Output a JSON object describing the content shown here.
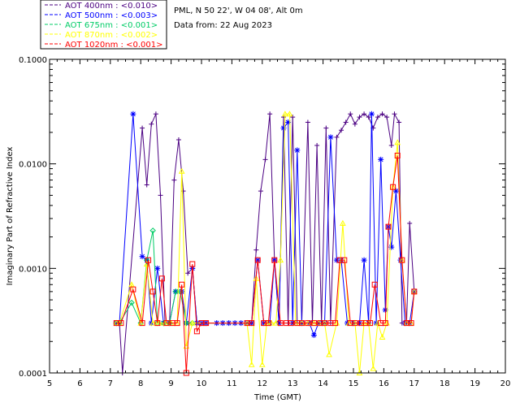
{
  "header": {
    "site_line": "PML, N 50 22', W 04 08', Alt 0m",
    "date_line": "Data from: 22 Aug 2023"
  },
  "chart_data": {
    "type": "line",
    "title": "",
    "xlabel": "Time (GMT)",
    "ylabel": "Imaginary Part of Refractive Index",
    "xlim": [
      5,
      20
    ],
    "ylim": [
      0.0001,
      0.1
    ],
    "y_scale": "log",
    "grid": false,
    "legend_position": "top-left",
    "x_ticks": [
      "5",
      "6",
      "7",
      "8",
      "9",
      "10",
      "11",
      "12",
      "13",
      "14",
      "15",
      "16",
      "17",
      "18",
      "19",
      "20"
    ],
    "y_ticks": [
      "0.0001",
      "0.0010",
      "0.0100",
      "0.1000"
    ],
    "series": [
      {
        "name": "AOT  400nm : <0.010>",
        "color": "#4b0082",
        "marker": "plus",
        "points": [
          [
            7.2,
            0.0003
          ],
          [
            7.3,
            0.0003
          ],
          [
            7.4,
            0.0001
          ],
          [
            8.05,
            0.022
          ],
          [
            8.2,
            0.0063
          ],
          [
            8.35,
            0.024
          ],
          [
            8.5,
            0.03
          ],
          [
            8.65,
            0.005
          ],
          [
            8.8,
            0.0003
          ],
          [
            8.95,
            0.0003
          ],
          [
            9.1,
            0.007
          ],
          [
            9.25,
            0.017
          ],
          [
            9.4,
            0.0055
          ],
          [
            9.55,
            0.0009
          ],
          [
            9.7,
            0.001
          ],
          [
            9.85,
            0.0003
          ],
          [
            10.0,
            0.0003
          ],
          [
            10.15,
            0.0003
          ],
          [
            10.5,
            0.0003
          ],
          [
            10.7,
            0.0003
          ],
          [
            10.9,
            0.0003
          ],
          [
            11.1,
            0.0003
          ],
          [
            11.3,
            0.0003
          ],
          [
            11.5,
            0.0003
          ],
          [
            11.65,
            0.0003
          ],
          [
            11.8,
            0.0015
          ],
          [
            11.95,
            0.0055
          ],
          [
            12.1,
            0.011
          ],
          [
            12.25,
            0.03
          ],
          [
            12.4,
            0.0012
          ],
          [
            12.55,
            0.0003
          ],
          [
            12.7,
            0.028
          ],
          [
            12.85,
            0.0003
          ],
          [
            13.0,
            0.028
          ],
          [
            13.15,
            0.0003
          ],
          [
            13.3,
            0.0003
          ],
          [
            13.5,
            0.025
          ],
          [
            13.65,
            0.0003
          ],
          [
            13.8,
            0.015
          ],
          [
            13.95,
            0.0003
          ],
          [
            14.1,
            0.022
          ],
          [
            14.25,
            0.0003
          ],
          [
            14.45,
            0.018
          ],
          [
            14.6,
            0.021
          ],
          [
            14.75,
            0.025
          ],
          [
            14.9,
            0.03
          ],
          [
            15.05,
            0.024
          ],
          [
            15.2,
            0.028
          ],
          [
            15.35,
            0.03
          ],
          [
            15.5,
            0.028
          ],
          [
            15.65,
            0.022
          ],
          [
            15.8,
            0.028
          ],
          [
            15.95,
            0.03
          ],
          [
            16.1,
            0.028
          ],
          [
            16.25,
            0.015
          ],
          [
            16.35,
            0.03
          ],
          [
            16.5,
            0.025
          ],
          [
            16.6,
            0.0003
          ],
          [
            16.75,
            0.0003
          ],
          [
            16.85,
            0.0027
          ],
          [
            17.0,
            0.0006
          ]
        ]
      },
      {
        "name": "AOT  500nm : <0.003>",
        "color": "#0000ff",
        "marker": "star",
        "points": [
          [
            7.2,
            0.0003
          ],
          [
            7.3,
            0.0003
          ],
          [
            7.75,
            0.03
          ],
          [
            8.05,
            0.0013
          ],
          [
            8.2,
            0.0012
          ],
          [
            8.35,
            0.0003
          ],
          [
            8.55,
            0.001
          ],
          [
            8.75,
            0.0003
          ],
          [
            8.95,
            0.0003
          ],
          [
            9.15,
            0.0006
          ],
          [
            9.35,
            0.0006
          ],
          [
            9.5,
            0.0003
          ],
          [
            9.7,
            0.001
          ],
          [
            9.85,
            0.0003
          ],
          [
            10.0,
            0.0003
          ],
          [
            10.15,
            0.0003
          ],
          [
            10.5,
            0.0003
          ],
          [
            10.7,
            0.0003
          ],
          [
            10.9,
            0.0003
          ],
          [
            11.1,
            0.0003
          ],
          [
            11.3,
            0.0003
          ],
          [
            11.5,
            0.0003
          ],
          [
            11.65,
            0.0003
          ],
          [
            11.85,
            0.0012
          ],
          [
            12.05,
            0.0003
          ],
          [
            12.25,
            0.0003
          ],
          [
            12.4,
            0.0012
          ],
          [
            12.55,
            0.0003
          ],
          [
            12.7,
            0.022
          ],
          [
            12.85,
            0.025
          ],
          [
            13.0,
            0.0003
          ],
          [
            13.15,
            0.0135
          ],
          [
            13.3,
            0.0003
          ],
          [
            13.55,
            0.0003
          ],
          [
            13.7,
            0.00023
          ],
          [
            13.85,
            0.0003
          ],
          [
            14.05,
            0.0003
          ],
          [
            14.25,
            0.018
          ],
          [
            14.45,
            0.0012
          ],
          [
            14.6,
            0.0012
          ],
          [
            14.8,
            0.0003
          ],
          [
            15.0,
            0.0003
          ],
          [
            15.2,
            0.0003
          ],
          [
            15.35,
            0.0012
          ],
          [
            15.5,
            0.0003
          ],
          [
            15.6,
            0.03
          ],
          [
            15.75,
            0.0003
          ],
          [
            15.9,
            0.011
          ],
          [
            16.05,
            0.0004
          ],
          [
            16.15,
            0.0025
          ],
          [
            16.25,
            0.0016
          ],
          [
            16.4,
            0.0055
          ],
          [
            16.55,
            0.0012
          ],
          [
            16.7,
            0.0003
          ],
          [
            16.85,
            0.0003
          ],
          [
            17.0,
            0.0006
          ]
        ]
      },
      {
        "name": "AOT  675nm : <0.001>",
        "color": "#00cc66",
        "marker": "diamond",
        "points": [
          [
            7.2,
            0.0003
          ],
          [
            7.3,
            0.0003
          ],
          [
            7.7,
            0.00047
          ],
          [
            8.0,
            0.0003
          ],
          [
            8.2,
            0.0012
          ],
          [
            8.4,
            0.0023
          ],
          [
            8.55,
            0.0003
          ],
          [
            8.75,
            0.0003
          ],
          [
            8.95,
            0.0003
          ],
          [
            9.15,
            0.0006
          ],
          [
            9.3,
            0.0006
          ],
          [
            9.5,
            0.0003
          ],
          [
            9.7,
            0.0003
          ]
        ]
      },
      {
        "name": "AOT  870nm : <0.002>",
        "color": "#ffff00",
        "marker": "triangle",
        "points": [
          [
            7.2,
            0.0003
          ],
          [
            7.3,
            0.0003
          ],
          [
            7.7,
            0.0007
          ],
          [
            8.0,
            0.0003
          ],
          [
            8.2,
            0.0011
          ],
          [
            8.4,
            0.0003
          ],
          [
            8.6,
            0.0003
          ],
          [
            8.8,
            0.0003
          ],
          [
            9.0,
            0.0003
          ],
          [
            9.2,
            0.0003
          ],
          [
            9.35,
            0.0085
          ],
          [
            9.5,
            0.00018
          ],
          [
            9.7,
            0.0003
          ],
          [
            11.5,
            0.0003
          ],
          [
            11.65,
            0.00012
          ],
          [
            11.8,
            0.0008
          ],
          [
            12.0,
            0.00012
          ],
          [
            12.15,
            0.0003
          ],
          [
            12.3,
            0.0003
          ],
          [
            12.45,
            0.0003
          ],
          [
            12.6,
            0.0012
          ],
          [
            12.75,
            0.03
          ],
          [
            12.9,
            0.03
          ],
          [
            13.1,
            0.0003
          ],
          [
            13.3,
            0.0003
          ],
          [
            13.5,
            0.0003
          ],
          [
            13.7,
            0.0003
          ],
          [
            13.85,
            0.0003
          ],
          [
            14.05,
            0.0003
          ],
          [
            14.2,
            0.00015
          ],
          [
            14.45,
            0.0003
          ],
          [
            14.65,
            0.0027
          ],
          [
            14.85,
            0.0003
          ],
          [
            15.05,
            0.0003
          ],
          [
            15.2,
            0.0001
          ],
          [
            15.35,
            0.0003
          ],
          [
            15.5,
            0.0003
          ],
          [
            15.65,
            0.00011
          ],
          [
            15.8,
            0.0003
          ],
          [
            15.95,
            0.00022
          ],
          [
            16.1,
            0.0003
          ],
          [
            16.3,
            0.006
          ],
          [
            16.45,
            0.016
          ],
          [
            16.6,
            0.0012
          ],
          [
            16.75,
            0.0003
          ],
          [
            16.9,
            0.0003
          ],
          [
            17.0,
            0.0006
          ]
        ]
      },
      {
        "name": "AOT 1020nm : <0.001>",
        "color": "#ff0000",
        "marker": "square",
        "points": [
          [
            7.2,
            0.0003
          ],
          [
            7.35,
            0.0003
          ],
          [
            7.75,
            0.00063
          ],
          [
            8.05,
            0.0003
          ],
          [
            8.25,
            0.0012
          ],
          [
            8.4,
            0.0006
          ],
          [
            8.55,
            0.0003
          ],
          [
            8.7,
            0.0008
          ],
          [
            8.85,
            0.0003
          ],
          [
            9.05,
            0.0003
          ],
          [
            9.2,
            0.0003
          ],
          [
            9.35,
            0.0007
          ],
          [
            9.5,
            0.0001
          ],
          [
            9.7,
            0.0011
          ],
          [
            9.85,
            0.00025
          ],
          [
            10.0,
            0.0003
          ],
          [
            10.15,
            0.0003
          ],
          [
            11.5,
            0.0003
          ],
          [
            11.65,
            0.0003
          ],
          [
            11.85,
            0.0012
          ],
          [
            12.05,
            0.0003
          ],
          [
            12.2,
            0.0003
          ],
          [
            12.4,
            0.0012
          ],
          [
            12.6,
            0.0003
          ],
          [
            12.8,
            0.0003
          ],
          [
            12.95,
            0.0003
          ],
          [
            13.15,
            0.0003
          ],
          [
            13.3,
            0.0003
          ],
          [
            13.5,
            0.0003
          ],
          [
            13.7,
            0.0003
          ],
          [
            13.9,
            0.0003
          ],
          [
            14.05,
            0.0003
          ],
          [
            14.25,
            0.0003
          ],
          [
            14.4,
            0.0003
          ],
          [
            14.55,
            0.0012
          ],
          [
            14.7,
            0.0012
          ],
          [
            14.9,
            0.0003
          ],
          [
            15.05,
            0.0003
          ],
          [
            15.25,
            0.0003
          ],
          [
            15.4,
            0.0003
          ],
          [
            15.55,
            0.0003
          ],
          [
            15.7,
            0.0007
          ],
          [
            15.9,
            0.0003
          ],
          [
            16.05,
            0.0003
          ],
          [
            16.15,
            0.0025
          ],
          [
            16.3,
            0.006
          ],
          [
            16.45,
            0.012
          ],
          [
            16.6,
            0.0012
          ],
          [
            16.75,
            0.0003
          ],
          [
            16.9,
            0.0003
          ],
          [
            17.0,
            0.0006
          ]
        ]
      }
    ]
  }
}
